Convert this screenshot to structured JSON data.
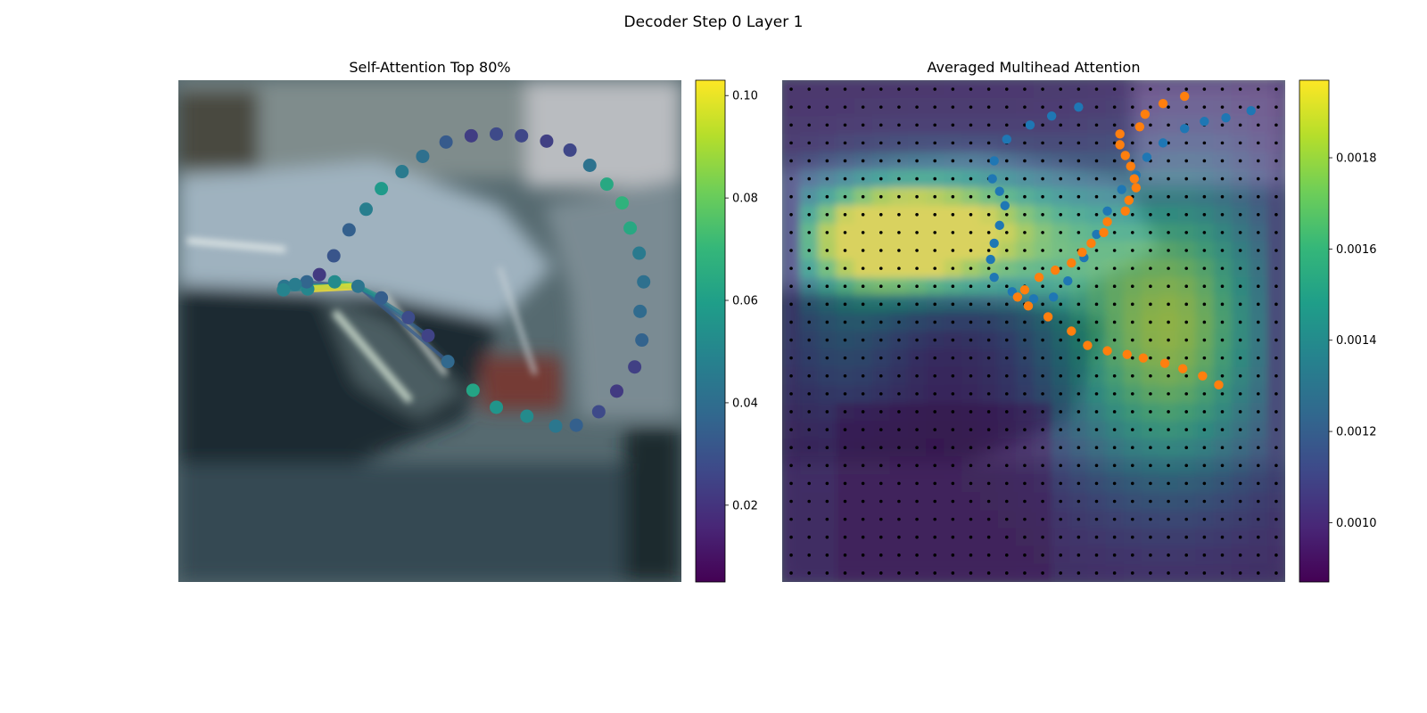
{
  "figure": {
    "title": "Decoder Step 0 Layer 1"
  },
  "colors": {
    "viridis": [
      "#440154",
      "#482777",
      "#3e4989",
      "#31688e",
      "#26828e",
      "#1f9e89",
      "#35b779",
      "#6ece58",
      "#b5de2b",
      "#fde725"
    ],
    "blue_points": "#1f77b4",
    "orange_points": "#ff7f0e",
    "grid_dots": "#000000"
  },
  "chart_data": [
    {
      "type": "scatter",
      "title": "Self-Attention Top 80%",
      "axes": "off",
      "background": "photo-like image of parked cars",
      "colorbar": {
        "min": 0.005,
        "max": 0.103,
        "ticks": [
          "0.02",
          "0.04",
          "0.06",
          "0.08",
          "0.10"
        ],
        "tick_values": [
          0.02,
          0.04,
          0.06,
          0.08,
          0.1
        ],
        "colormap": "viridis"
      },
      "points": [
        {
          "x": 11.8,
          "y": 23.0,
          "v": 0.043
        },
        {
          "x": 14.4,
          "y": 23.3,
          "v": 0.05
        },
        {
          "x": 17.4,
          "y": 22.5,
          "v": 0.052
        },
        {
          "x": 20.0,
          "y": 23.0,
          "v": 0.043
        },
        {
          "x": 22.6,
          "y": 24.3,
          "v": 0.034
        },
        {
          "x": 25.6,
          "y": 26.5,
          "v": 0.028
        },
        {
          "x": 27.8,
          "y": 28.5,
          "v": 0.025
        },
        {
          "x": 30.0,
          "y": 31.4,
          "v": 0.038
        },
        {
          "x": 32.8,
          "y": 34.6,
          "v": 0.062
        },
        {
          "x": 35.4,
          "y": 36.5,
          "v": 0.056
        },
        {
          "x": 38.8,
          "y": 37.5,
          "v": 0.052
        },
        {
          "x": 42.0,
          "y": 38.6,
          "v": 0.044
        },
        {
          "x": 44.3,
          "y": 38.5,
          "v": 0.035
        },
        {
          "x": 46.8,
          "y": 37.0,
          "v": 0.027
        },
        {
          "x": 48.8,
          "y": 34.7,
          "v": 0.022
        },
        {
          "x": 50.8,
          "y": 32.0,
          "v": 0.024
        },
        {
          "x": 51.6,
          "y": 29.0,
          "v": 0.036
        },
        {
          "x": 51.4,
          "y": 25.8,
          "v": 0.039
        },
        {
          "x": 51.8,
          "y": 22.5,
          "v": 0.041
        },
        {
          "x": 51.3,
          "y": 19.3,
          "v": 0.045
        },
        {
          "x": 50.3,
          "y": 16.5,
          "v": 0.064
        },
        {
          "x": 49.4,
          "y": 13.7,
          "v": 0.068
        },
        {
          "x": 47.7,
          "y": 11.6,
          "v": 0.064
        },
        {
          "x": 45.8,
          "y": 9.5,
          "v": 0.042
        },
        {
          "x": 43.6,
          "y": 7.8,
          "v": 0.026
        },
        {
          "x": 41.0,
          "y": 6.8,
          "v": 0.024
        },
        {
          "x": 38.2,
          "y": 6.2,
          "v": 0.026
        },
        {
          "x": 35.4,
          "y": 6.0,
          "v": 0.027
        },
        {
          "x": 32.6,
          "y": 6.2,
          "v": 0.023
        },
        {
          "x": 29.8,
          "y": 6.9,
          "v": 0.033
        },
        {
          "x": 27.2,
          "y": 8.5,
          "v": 0.041
        },
        {
          "x": 24.9,
          "y": 10.2,
          "v": 0.045
        },
        {
          "x": 22.6,
          "y": 12.1,
          "v": 0.058
        },
        {
          "x": 20.9,
          "y": 14.4,
          "v": 0.047
        },
        {
          "x": 19.0,
          "y": 16.7,
          "v": 0.035
        },
        {
          "x": 17.3,
          "y": 19.6,
          "v": 0.031
        },
        {
          "x": 15.7,
          "y": 21.7,
          "v": 0.022
        },
        {
          "x": 14.3,
          "y": 22.5,
          "v": 0.037
        },
        {
          "x": 13.0,
          "y": 22.8,
          "v": 0.046
        },
        {
          "x": 11.7,
          "y": 23.4,
          "v": 0.049
        }
      ],
      "attention_lines_from": 3,
      "attention_lines": [
        {
          "to": 1,
          "v": 0.103
        },
        {
          "to": 2,
          "v": 0.07
        },
        {
          "to": 0,
          "v": 0.062
        },
        {
          "to": 4,
          "v": 0.055
        },
        {
          "to": 39,
          "v": 0.048
        },
        {
          "to": 5,
          "v": 0.043
        },
        {
          "to": 38,
          "v": 0.04
        },
        {
          "to": 6,
          "v": 0.036
        },
        {
          "to": 7,
          "v": 0.033
        },
        {
          "to": 37,
          "v": 0.03
        }
      ]
    },
    {
      "type": "heatmap",
      "title": "Averaged Multihead Attention",
      "axes": "off",
      "grid_shape": [
        28,
        28
      ],
      "colorbar": {
        "min": 0.00087,
        "max": 0.00197,
        "ticks": [
          "0.0010",
          "0.0012",
          "0.0014",
          "0.0016",
          "0.0018"
        ],
        "tick_values": [
          0.001,
          0.0012,
          0.0014,
          0.0016,
          0.0018
        ],
        "colormap": "viridis"
      },
      "blue_points": [
        [
          1.0,
          16.0
        ],
        [
          1.5,
          14.5
        ],
        [
          2.0,
          13.3
        ],
        [
          2.8,
          12.0
        ],
        [
          4.0,
          11.3
        ],
        [
          5.0,
          11.2
        ],
        [
          5.7,
          11.6
        ],
        [
          6.5,
          11.9
        ],
        [
          7.6,
          11.6
        ],
        [
          8.6,
          11.3
        ],
        [
          9.5,
          11.1
        ],
        [
          10.5,
          11.3
        ],
        [
          11.3,
          12.3
        ],
        [
          11.7,
          13.5
        ],
        [
          11.6,
          14.6
        ],
        [
          10.7,
          15.4
        ],
        [
          9.4,
          16.3
        ],
        [
          8.1,
          17.0
        ],
        [
          6.8,
          17.6
        ],
        [
          5.6,
          18.4
        ],
        [
          4.8,
          19.2
        ],
        [
          3.8,
          19.8
        ],
        [
          3.0,
          20.7
        ],
        [
          2.2,
          21.9
        ],
        [
          1.8,
          23.0
        ],
        [
          1.6,
          24.2
        ],
        [
          1.2,
          25.6
        ]
      ],
      "orange_points": [
        [
          0.4,
          21.9
        ],
        [
          0.8,
          20.7
        ],
        [
          1.4,
          19.7
        ],
        [
          2.1,
          19.4
        ],
        [
          2.5,
          18.3
        ],
        [
          3.1,
          18.3
        ],
        [
          3.7,
          18.6
        ],
        [
          4.3,
          18.9
        ],
        [
          5.0,
          19.1
        ],
        [
          5.5,
          19.2
        ],
        [
          6.2,
          18.8
        ],
        [
          6.8,
          18.6
        ],
        [
          7.4,
          17.6
        ],
        [
          8.0,
          17.4
        ],
        [
          8.6,
          16.7
        ],
        [
          9.1,
          16.2
        ],
        [
          9.7,
          15.6
        ],
        [
          10.1,
          14.7
        ],
        [
          10.5,
          13.8
        ],
        [
          11.2,
          13.0
        ],
        [
          11.6,
          12.6
        ],
        [
          12.1,
          13.2
        ],
        [
          12.7,
          14.3
        ],
        [
          13.5,
          15.6
        ],
        [
          14.3,
          16.5
        ],
        [
          14.6,
          17.6
        ],
        [
          14.8,
          18.7
        ],
        [
          15.0,
          19.6
        ],
        [
          15.3,
          20.8
        ],
        [
          15.6,
          21.8
        ],
        [
          16.0,
          22.9
        ],
        [
          16.5,
          23.8
        ]
      ]
    }
  ]
}
